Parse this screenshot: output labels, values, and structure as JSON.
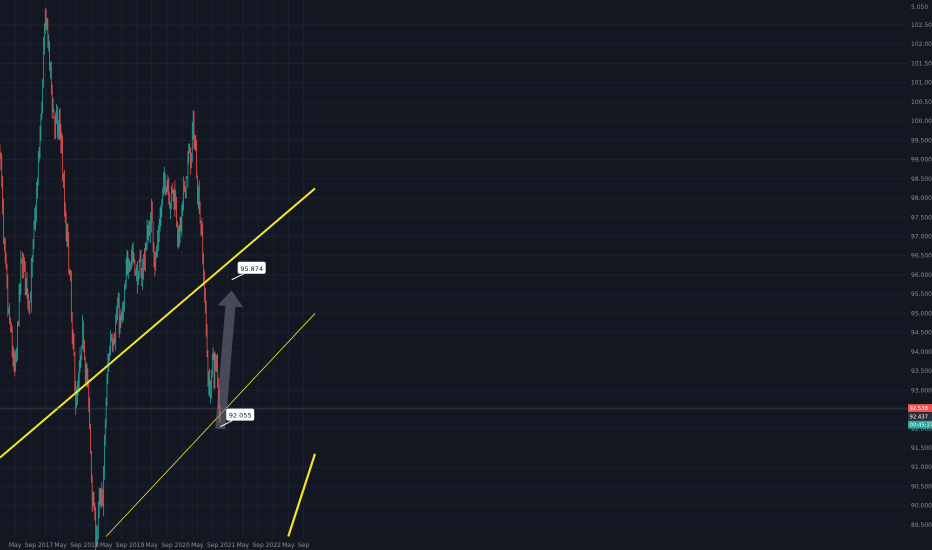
{
  "colors": {
    "background": "#131722",
    "grid": "#1c2030",
    "axis_text": "#8a8f9c",
    "up": "#26a69a",
    "down": "#ef5350",
    "trendline": "#f0e628",
    "crosshair": "#4a4f5e",
    "arrow": "#6e7483",
    "last_price_bg": "#ef5350",
    "prev_close_bg": "#2a2e39",
    "countdown_bg": "#26a69a"
  },
  "chart_data": {
    "type": "candlestick",
    "title": "",
    "xlabel": "",
    "ylabel": "",
    "ylim": [
      89.16,
      103.15
    ],
    "y_ticks": [
      "89.500",
      "90.000",
      "90.500",
      "91.000",
      "91.500",
      "92.000",
      "92.500",
      "93.000",
      "93.500",
      "94.000",
      "94.500",
      "95.000",
      "95.500",
      "96.000",
      "96.500",
      "97.000",
      "97.500",
      "98.000",
      "98.500",
      "99.000",
      "99.500",
      "100.000",
      "100.500",
      "101.000",
      "101.500",
      "102.000",
      "102.500"
    ],
    "y_tick_values": [
      89.5,
      90.0,
      90.5,
      91.0,
      91.5,
      92.0,
      92.5,
      93.0,
      93.5,
      94.0,
      94.5,
      95.0,
      95.5,
      96.0,
      96.5,
      97.0,
      97.5,
      98.0,
      98.5,
      99.0,
      99.5,
      100.0,
      100.5,
      101.0,
      101.5,
      102.0,
      102.5
    ],
    "y_top_partial_label": "5.050",
    "x_ticks": [
      "May",
      "Sep",
      "2017",
      "May",
      "Sep",
      "2018",
      "May",
      "Sep",
      "2019",
      "May",
      "Sep",
      "2020",
      "May",
      "Sep",
      "2021",
      "May",
      "Sep",
      "2022",
      "May",
      "Sep"
    ],
    "x_tick_dates": [
      "2016-05",
      "2016-09",
      "2017-01",
      "2017-05",
      "2017-09",
      "2018-01",
      "2018-05",
      "2018-09",
      "2019-01",
      "2019-05",
      "2019-09",
      "2020-01",
      "2020-05",
      "2020-09",
      "2021-01",
      "2021-05",
      "2021-09",
      "2022-01",
      "2022-05",
      "2022-09"
    ],
    "close_path": [
      {
        "date": "2016-01",
        "value": 99.3
      },
      {
        "date": "2016-02",
        "value": 96.2
      },
      {
        "date": "2016-03",
        "value": 95.0
      },
      {
        "date": "2016-04",
        "value": 94.1
      },
      {
        "date": "2016-05",
        "value": 93.2
      },
      {
        "date": "2016-06",
        "value": 95.6
      },
      {
        "date": "2016-07",
        "value": 96.5
      },
      {
        "date": "2016-08",
        "value": 95.5
      },
      {
        "date": "2016-09",
        "value": 95.6
      },
      {
        "date": "2016-10",
        "value": 97.2
      },
      {
        "date": "2016-11",
        "value": 98.8
      },
      {
        "date": "2016-12",
        "value": 100.8
      },
      {
        "date": "2017-01",
        "value": 103.0
      },
      {
        "date": "2017-02",
        "value": 101.2
      },
      {
        "date": "2017-03",
        "value": 100.3
      },
      {
        "date": "2017-04",
        "value": 99.6
      },
      {
        "date": "2017-05",
        "value": 99.8
      },
      {
        "date": "2017-06",
        "value": 97.2
      },
      {
        "date": "2017-07",
        "value": 96.6
      },
      {
        "date": "2017-08",
        "value": 94.1
      },
      {
        "date": "2017-09",
        "value": 92.6
      },
      {
        "date": "2017-10",
        "value": 93.5
      },
      {
        "date": "2017-11",
        "value": 94.5
      },
      {
        "date": "2017-12",
        "value": 93.0
      },
      {
        "date": "2018-01",
        "value": 90.8
      },
      {
        "date": "2018-02",
        "value": 89.2
      },
      {
        "date": "2018-03",
        "value": 89.8
      },
      {
        "date": "2018-04",
        "value": 90.2
      },
      {
        "date": "2018-05",
        "value": 93.0
      },
      {
        "date": "2018-06",
        "value": 94.5
      },
      {
        "date": "2018-07",
        "value": 94.7
      },
      {
        "date": "2018-08",
        "value": 95.0
      },
      {
        "date": "2018-09",
        "value": 94.6
      },
      {
        "date": "2018-10",
        "value": 95.6
      },
      {
        "date": "2018-11",
        "value": 96.8
      },
      {
        "date": "2018-12",
        "value": 96.5
      },
      {
        "date": "2019-01",
        "value": 95.9
      },
      {
        "date": "2019-02",
        "value": 96.0
      },
      {
        "date": "2019-03",
        "value": 96.5
      },
      {
        "date": "2019-04",
        "value": 97.2
      },
      {
        "date": "2019-05",
        "value": 97.5
      },
      {
        "date": "2019-06",
        "value": 96.3
      },
      {
        "date": "2019-07",
        "value": 97.3
      },
      {
        "date": "2019-08",
        "value": 98.2
      },
      {
        "date": "2019-09",
        "value": 98.7
      },
      {
        "date": "2019-10",
        "value": 98.0
      },
      {
        "date": "2019-11",
        "value": 98.2
      },
      {
        "date": "2019-12",
        "value": 96.9
      },
      {
        "date": "2020-01",
        "value": 97.5
      },
      {
        "date": "2020-02",
        "value": 98.8
      },
      {
        "date": "2020-03",
        "value": 99.0
      },
      {
        "date": "2020-04",
        "value": 99.8
      },
      {
        "date": "2020-05",
        "value": 98.4
      },
      {
        "date": "2020-06",
        "value": 97.2
      },
      {
        "date": "2020-07",
        "value": 95.0
      },
      {
        "date": "2020-08",
        "value": 92.8
      },
      {
        "date": "2020-09",
        "value": 93.8
      },
      {
        "date": "2020-10",
        "value": 93.5
      },
      {
        "date": "2020-11",
        "value": 92.3
      }
    ],
    "trendlines": [
      {
        "points": [
          {
            "date": "2016-01",
            "value": 91.25
          },
          {
            "date": "2022-12",
            "value": 98.25
          }
        ],
        "width": 2
      },
      {
        "points": [
          {
            "date": "2018-05",
            "value": 89.2
          },
          {
            "date": "2022-12",
            "value": 95.0
          }
        ],
        "width": 0.8
      },
      {
        "points": [
          {
            "date": "2022-05",
            "value": 89.2
          },
          {
            "date": "2022-12",
            "value": 91.35
          }
        ],
        "width": 2.2
      }
    ],
    "projection_arrow": {
      "from": {
        "date": "2020-11",
        "value": 92.0
      },
      "to": {
        "date": "2021-02",
        "value": 95.6
      }
    },
    "annotations": [
      {
        "text": "95.874",
        "date": "2021-02",
        "value": 95.874
      },
      {
        "text": "92.055",
        "date": "2020-11",
        "value": 92.055
      }
    ],
    "crosshair_value": 92.537,
    "price_badges": {
      "last_price": {
        "text": "92.538",
        "value": 92.538
      },
      "prev_close": {
        "text": "92.437"
      },
      "countdown": {
        "text": "00:45:37"
      }
    }
  }
}
